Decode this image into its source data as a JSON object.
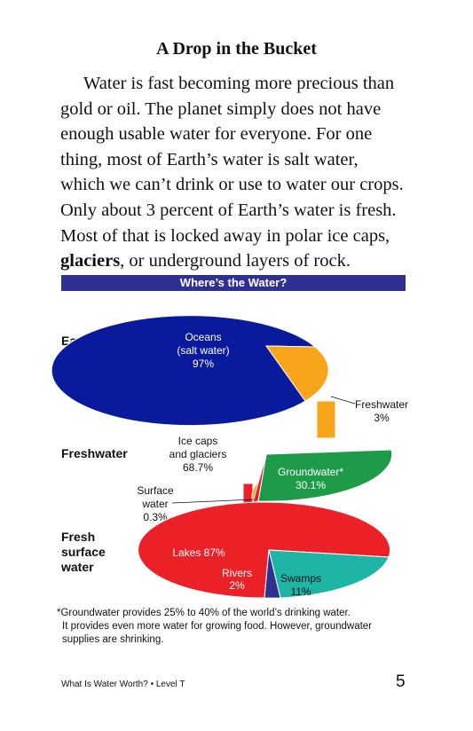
{
  "page": {
    "title": "A Drop in the Bucket",
    "paragraph_lines": [
      "Water is fast becoming more precious than",
      "gold or oil. The planet simply does not have",
      "enough usable water for everyone. For one",
      "thing, most of Earth’s water is salt water,",
      "which we can’t drink or use to water our crops.",
      "Only about 3 percent of Earth’s water is fresh.",
      "Most of that is locked away in polar ice caps,"
    ],
    "last_line_bold": "glaciers",
    "last_line_rest": ", or underground layers of rock.",
    "footer_left": "What Is Water Worth? • Level T",
    "page_number": "5"
  },
  "chart": {
    "banner_title": "Where’s the Water?",
    "rows": {
      "earth": "Earth’s\nwater",
      "fresh": "Freshwater",
      "surface": "Fresh\nsurface\nwater"
    },
    "earth_labels": {
      "oceans_1": "Oceans",
      "oceans_2": "(salt water)",
      "oceans_3": "97%",
      "fresh_1": "Freshwater",
      "fresh_2": "3%"
    },
    "fresh_labels": {
      "ice_1": "Ice caps",
      "ice_2": "and glaciers",
      "ice_3": "68.7%",
      "ground_1": "Groundwater*",
      "ground_2": "30.1%",
      "surface_1": "Surface",
      "surface_2": "water",
      "surface_3": "0.3%"
    },
    "surface_labels": {
      "lakes": "Lakes 87%",
      "rivers_1": "Rivers",
      "rivers_2": "2%",
      "swamps_1": "Swamps",
      "swamps_2": "11%"
    },
    "footnote_lines": [
      "*Groundwater provides 25% to 40% of the world’s drinking water.",
      "It provides even more water for growing food. However, groundwater",
      "supplies are shrinking."
    ],
    "colors": {
      "banner": "#2e3192",
      "oceans": "#0a1a9c",
      "ice": "#f9a51b",
      "groundwater": "#1e9b48",
      "lakes": "#ec2027",
      "rivers": "#2e3192",
      "swamps": "#1fb5a6"
    }
  },
  "chart_data": [
    {
      "type": "pie",
      "title": "Earth’s water",
      "categories": [
        "Oceans (salt water)",
        "Freshwater"
      ],
      "values": [
        97,
        3
      ]
    },
    {
      "type": "pie",
      "title": "Freshwater",
      "categories": [
        "Ice caps and glaciers",
        "Groundwater*",
        "Surface water"
      ],
      "values": [
        68.7,
        30.1,
        0.3
      ]
    },
    {
      "type": "pie",
      "title": "Fresh surface water",
      "categories": [
        "Lakes",
        "Rivers",
        "Swamps"
      ],
      "values": [
        87,
        2,
        11
      ]
    }
  ]
}
